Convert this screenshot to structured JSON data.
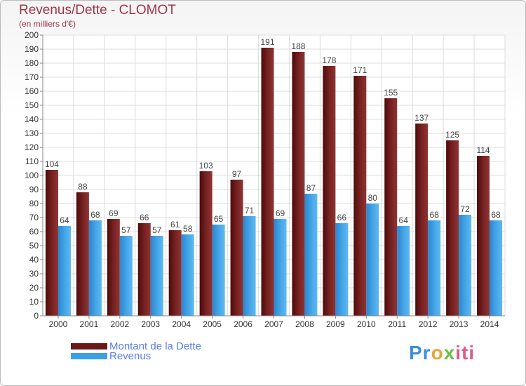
{
  "title": "Revenus/Dette - CLOMOT",
  "subtitle": "(en milliers d'€)",
  "legend": {
    "dette": "Montant de la Dette",
    "revenus": "Revenus"
  },
  "logo": "Proxiti",
  "colors": {
    "dette": "#6b1818",
    "revenus": "#3d9fe6",
    "title": "#a0364a",
    "legend_text": "#5a7fe6"
  },
  "chart_data": {
    "type": "bar",
    "title": "Revenus/Dette - CLOMOT",
    "ylabel": "(en milliers d'€)",
    "xlabel": "",
    "categories": [
      "2000",
      "2001",
      "2002",
      "2003",
      "2004",
      "2005",
      "2006",
      "2007",
      "2008",
      "2009",
      "2010",
      "2011",
      "2012",
      "2013",
      "2014"
    ],
    "series": [
      {
        "name": "Montant de la Dette",
        "values": [
          104,
          88,
          69,
          66,
          61,
          103,
          97,
          191,
          188,
          178,
          171,
          155,
          137,
          125,
          114
        ]
      },
      {
        "name": "Revenus",
        "values": [
          64,
          68,
          57,
          57,
          58,
          65,
          71,
          69,
          87,
          66,
          80,
          64,
          68,
          72,
          68
        ]
      }
    ],
    "ylim": [
      0,
      200
    ],
    "ytick_step": 10,
    "grid": true,
    "legend_position": "bottom-left"
  }
}
